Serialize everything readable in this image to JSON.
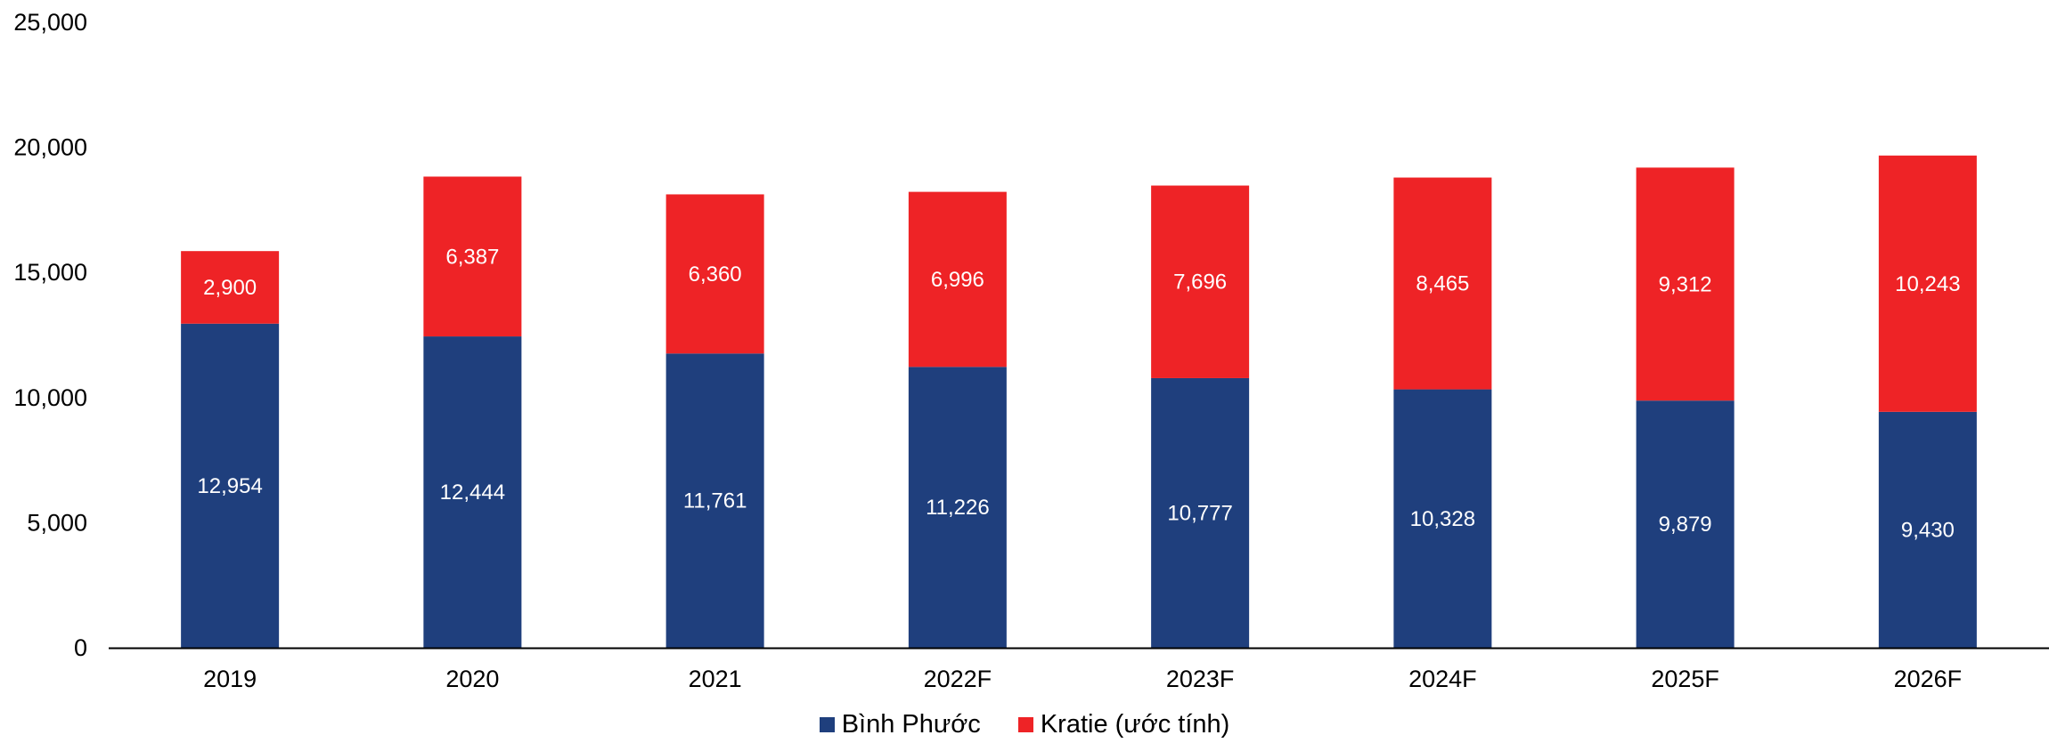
{
  "chart_data": {
    "type": "bar",
    "stacked": true,
    "categories": [
      "2019",
      "2020",
      "2021",
      "2022F",
      "2023F",
      "2024F",
      "2025F",
      "2026F"
    ],
    "series": [
      {
        "name": "Bình Phước",
        "color": "#1F3F7D",
        "values": [
          12954,
          12444,
          11761,
          11226,
          10777,
          10328,
          9879,
          9430
        ],
        "labels": [
          "12,954",
          "12,444",
          "11,761",
          "11,226",
          "10,777",
          "10,328",
          "9,879",
          "9,430"
        ]
      },
      {
        "name": "Kratie (ước tính)",
        "color": "#EE2326",
        "values": [
          2900,
          6387,
          6360,
          6996,
          7696,
          8465,
          9312,
          10243
        ],
        "labels": [
          "2,900",
          "6,387",
          "6,360",
          "6,996",
          "7,696",
          "8,465",
          "9,312",
          "10,243"
        ]
      }
    ],
    "ylim": [
      0,
      25000
    ],
    "yticks": [
      0,
      5000,
      10000,
      15000,
      20000,
      25000
    ],
    "ytick_labels": [
      "0",
      "5,000",
      "10,000",
      "15,000",
      "20,000",
      "25,000"
    ],
    "title": "",
    "xlabel": "",
    "ylabel": "",
    "grid": false,
    "legend_position": "bottom"
  }
}
